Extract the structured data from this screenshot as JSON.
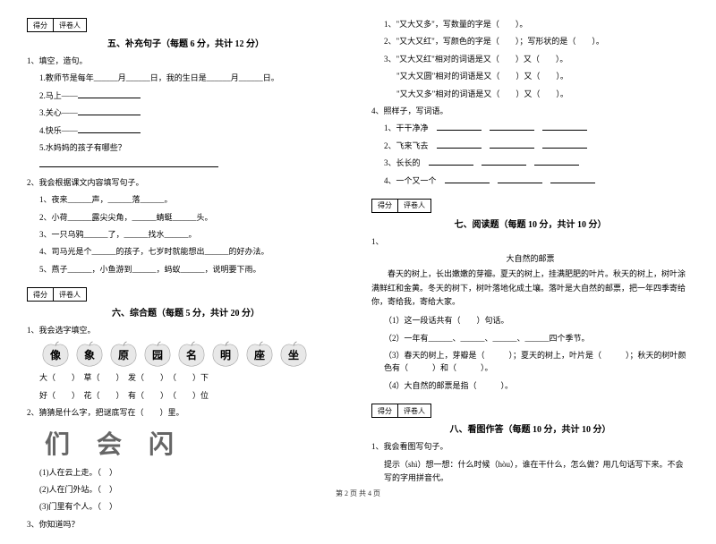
{
  "scorebox": {
    "score": "得分",
    "grader": "评卷人"
  },
  "section5": {
    "title": "五、补充句子（每题 6 分，共计 12 分）",
    "q1": "1、填空，造句。",
    "q1_1": "1.教师节是每年______月______日，我的生日是______月______日。",
    "q1_2": "2.马上——",
    "q1_3": "3.关心——",
    "q1_4": "4.快乐——",
    "q1_5": "5.水妈妈的孩子有哪些？",
    "q2": "2、我会根据课文内容填写句子。",
    "q2_1": "1、夜来______声，______落______。",
    "q2_2": "2、小荷______露尖尖角，______蜻蜓______头。",
    "q2_3": "3、一只乌鸦______了，______找水______。",
    "q2_4": "4、司马光是个______的孩子，七岁时就能想出______的好办法。",
    "q2_5": "5、燕子______，小鱼游到______，蚂蚁______，说明要下雨。"
  },
  "section6": {
    "title": "六、综合题（每题 5 分，共计 20 分）",
    "q1": "1、我会选字填空。",
    "apples": [
      "像",
      "象",
      "原",
      "园",
      "名",
      "明",
      "座",
      "坐"
    ],
    "row1": "大（　　）　草（　　）　发（　　）　（　　）下",
    "row2": "好（　　）　花（　　）　有（　　）　（　　）位",
    "q2": "2、猜猜是什么字，把谜底写在（　　）里。",
    "bigchars": [
      "们",
      "会",
      "闪"
    ],
    "q2_1": "(1)人在云上走。（　）",
    "q2_2": "(2)人在门外站。（　）",
    "q2_3": "(3)门里有个人。（　）",
    "q3": "3、你知道吗？"
  },
  "right_top": {
    "l1": "1、\"又大又多\"，写数量的字是（　　）。",
    "l2": "2、\"又大又红\"，写颜色的字是（　　）；写形状的是（　　）。",
    "l3": "3、\"又大又红\"相对的词语是又（　　）又（　　）。",
    "l4": "\"又大又圆\"相对的词语是又（　　）又（　　）。",
    "l5": "\"又大又多\"相对的词语是又（　　）又（　　）。",
    "q4": "4、照样子，写词语。",
    "q4_1": "1、干干净净",
    "q4_2": "2、飞来飞去",
    "q4_3": "3、长长的",
    "q4_4": "4、一个又一个"
  },
  "section7": {
    "title": "七、阅读题（每题 10 分，共计 10 分）",
    "q1": "1、",
    "reading_title": "大自然的邮票",
    "body": "春天的树上，长出嫩嫩的芽瓣。夏天的树上，挂满肥肥的叶片。秋天的树上，树叶涂满鲜红和金黄。冬天的树下，树叶落地化成土壤。落叶是大自然的邮票，把一年四季寄给你，寄给我，寄给大家。",
    "r1": "（1）这一段话共有（　　）句话。",
    "r2": "（2）一年有______、______、______、______四个季节。",
    "r3": "（3）春天的树上，芽瓣是（　　　）；夏天的树上，叶片是（　　　）；秋天的树叶颜色有（　　　）和（　　　）。",
    "r4": "（4）大自然的邮票是指（　　　）。"
  },
  "section8": {
    "title": "八、看图作答（每题 10 分，共计 10 分）",
    "q1": "1、我会看图写句子。",
    "hint": "提示（shì）想一想：什么时候（hòu），谁在干什么，怎么做？用几句话写下来。不会写的字用拼音代。"
  },
  "footer": "第 2 页 共 4 页"
}
